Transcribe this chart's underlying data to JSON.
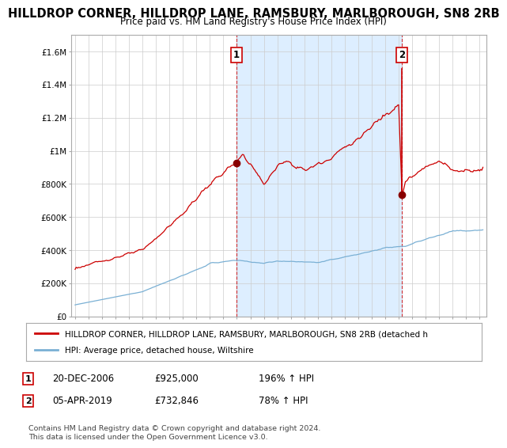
{
  "title": "HILLDROP CORNER, HILLDROP LANE, RAMSBURY, MARLBOROUGH, SN8 2RB",
  "subtitle": "Price paid vs. HM Land Registry's House Price Index (HPI)",
  "title_fontsize": 10.5,
  "subtitle_fontsize": 9,
  "red_label": "HILLDROP CORNER, HILLDROP LANE, RAMSBURY, MARLBOROUGH, SN8 2RB (detached h",
  "blue_label": "HPI: Average price, detached house, Wiltshire",
  "point1_x": 2006.97,
  "point1_y": 925000,
  "point1_label": "1",
  "point1_date": "20-DEC-2006",
  "point1_price": "£925,000",
  "point1_hpi": "196% ↑ HPI",
  "point2_x": 2019.25,
  "point2_y": 732846,
  "point2_label": "2",
  "point2_date": "05-APR-2019",
  "point2_price": "£732,846",
  "point2_hpi": "78% ↑ HPI",
  "ylim": [
    0,
    1700000
  ],
  "xlim_start": 1994.7,
  "xlim_end": 2025.5,
  "footer": "Contains HM Land Registry data © Crown copyright and database right 2024.\nThis data is licensed under the Open Government Licence v3.0.",
  "red_color": "#cc0000",
  "blue_color": "#7ab0d4",
  "shade_color": "#ddeeff",
  "bg_color": "#ffffff",
  "grid_color": "#cccccc"
}
